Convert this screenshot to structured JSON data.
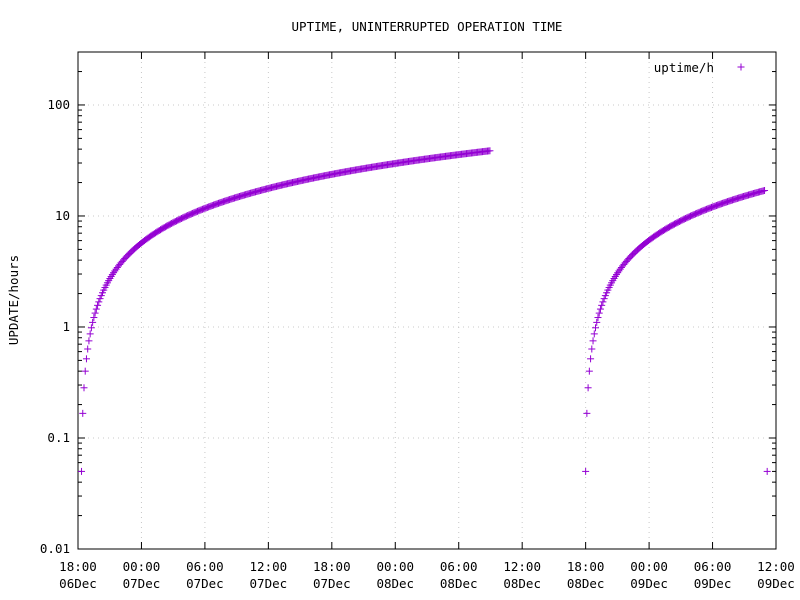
{
  "chart_data": {
    "type": "scatter",
    "title": "UPTIME, UNINTERRUPTED OPERATION TIME",
    "xlabel": "",
    "ylabel": "UPDATE/hours",
    "y_scale": "log",
    "ylim": [
      0.01,
      300
    ],
    "xlim": [
      "2006-12-06 18:00",
      "2006-12-09 12:00"
    ],
    "grid": true,
    "legend_position": "top-right",
    "colors": {
      "series": "#9400d3"
    },
    "x_ticks": [
      {
        "time": "18:00",
        "date": "06Dec",
        "at": "2006-12-06 18:00"
      },
      {
        "time": "00:00",
        "date": "07Dec",
        "at": "2006-12-07 00:00"
      },
      {
        "time": "06:00",
        "date": "07Dec",
        "at": "2006-12-07 06:00"
      },
      {
        "time": "12:00",
        "date": "07Dec",
        "at": "2006-12-07 12:00"
      },
      {
        "time": "18:00",
        "date": "07Dec",
        "at": "2006-12-07 18:00"
      },
      {
        "time": "00:00",
        "date": "08Dec",
        "at": "2006-12-08 00:00"
      },
      {
        "time": "06:00",
        "date": "08Dec",
        "at": "2006-12-08 06:00"
      },
      {
        "time": "12:00",
        "date": "08Dec",
        "at": "2006-12-08 12:00"
      },
      {
        "time": "18:00",
        "date": "08Dec",
        "at": "2006-12-08 18:00"
      },
      {
        "time": "00:00",
        "date": "09Dec",
        "at": "2006-12-09 00:00"
      },
      {
        "time": "06:00",
        "date": "09Dec",
        "at": "2006-12-09 06:00"
      },
      {
        "time": "12:00",
        "date": "09Dec",
        "at": "2006-12-09 12:00"
      }
    ],
    "y_ticks": [
      {
        "label": "0.01",
        "value": 0.01
      },
      {
        "label": "0.1",
        "value": 0.1
      },
      {
        "label": "1",
        "value": 1
      },
      {
        "label": "10",
        "value": 10
      },
      {
        "label": "100",
        "value": 100
      }
    ],
    "series": [
      {
        "name": "uptime/h",
        "segments": [
          {
            "start": "2006-12-06 18:20",
            "end": "2006-12-08 09:00",
            "interval_min": 7
          },
          {
            "start": "2006-12-08 18:00",
            "end": "2006-12-09 10:55",
            "interval_min": 7
          }
        ],
        "extra_points": [
          {
            "x": "2006-12-09 11:10",
            "y": 0.05
          }
        ]
      }
    ]
  }
}
